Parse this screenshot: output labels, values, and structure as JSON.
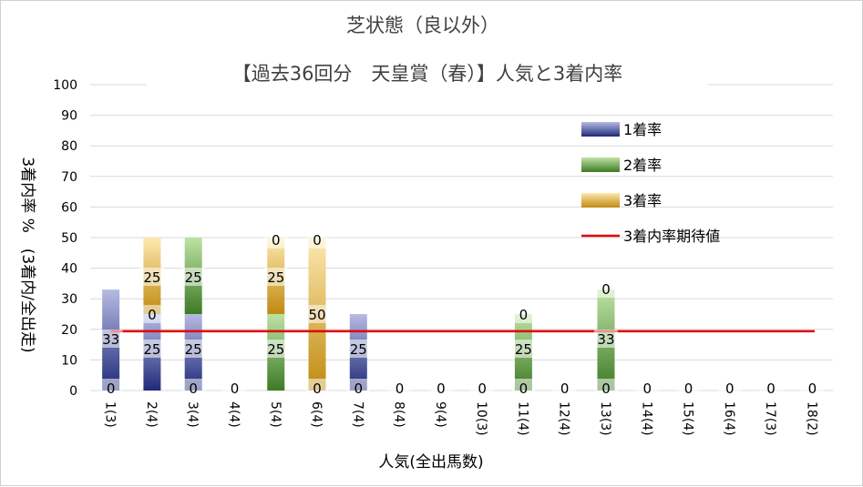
{
  "chart_data": {
    "type": "bar",
    "title": "芝状態（良以外）",
    "subtitle": "【過去36回分　天皇賞（春）】人気と3着内率",
    "xlabel": "人気(全出馬数)",
    "ylabel": "3着内率 %　(3着内/全出走)",
    "ylim": [
      0,
      100
    ],
    "yticks": [
      "0",
      "10",
      "20",
      "30",
      "40",
      "50",
      "60",
      "70",
      "80",
      "90",
      "100"
    ],
    "categories": [
      "1(3)",
      "2(4)",
      "3(4)",
      "4(4)",
      "5(4)",
      "6(4)",
      "7(4)",
      "8(4)",
      "9(4)",
      "10(3)",
      "11(4)",
      "12(4)",
      "13(3)",
      "14(4)",
      "15(4)",
      "16(4)",
      "17(3)",
      "18(2)"
    ],
    "series": [
      {
        "name": "1着率",
        "values": [
          33,
          25,
          25,
          0,
          0,
          0,
          25,
          0,
          0,
          0,
          0,
          0,
          0,
          0,
          0,
          0,
          0,
          0
        ],
        "color": "#3b4696"
      },
      {
        "name": "2着率",
        "values": [
          0,
          0,
          25,
          0,
          25,
          0,
          0,
          0,
          0,
          0,
          25,
          0,
          33,
          0,
          0,
          0,
          0,
          0
        ],
        "color": "#5a8a3a"
      },
      {
        "name": "3着率",
        "values": [
          0,
          25,
          0,
          0,
          25,
          50,
          0,
          0,
          0,
          0,
          0,
          0,
          0,
          0,
          0,
          0,
          0,
          0
        ],
        "color": "#c89b1e"
      }
    ],
    "data_labels": [
      {
        "category": "1(3)",
        "values": [
          "0",
          "33"
        ]
      },
      {
        "category": "2(4)",
        "values": [
          "25",
          "0",
          "25"
        ]
      },
      {
        "category": "3(4)",
        "values": [
          "0",
          "25",
          "25"
        ]
      },
      {
        "category": "4(4)",
        "values": [
          "0"
        ]
      },
      {
        "category": "5(4)",
        "values": [
          "25",
          "25",
          "0"
        ]
      },
      {
        "category": "6(4)",
        "values": [
          "0",
          "50",
          "0"
        ]
      },
      {
        "category": "7(4)",
        "values": [
          "0",
          "25"
        ]
      },
      {
        "category": "8(4)",
        "values": [
          "0"
        ]
      },
      {
        "category": "9(4)",
        "values": [
          "0"
        ]
      },
      {
        "category": "10(3)",
        "values": [
          "0"
        ]
      },
      {
        "category": "11(4)",
        "values": [
          "0",
          "25",
          "0"
        ]
      },
      {
        "category": "12(4)",
        "values": [
          "0"
        ]
      },
      {
        "category": "13(3)",
        "values": [
          "0",
          "33",
          "0"
        ]
      },
      {
        "category": "14(4)",
        "values": [
          "0"
        ]
      },
      {
        "category": "15(4)",
        "values": [
          "0"
        ]
      },
      {
        "category": "16(4)",
        "values": [
          "0"
        ]
      },
      {
        "category": "17(3)",
        "values": [
          "0"
        ]
      },
      {
        "category": "18(2)",
        "values": [
          "0"
        ]
      }
    ],
    "expected_line": {
      "name": "3着内率期待値",
      "value": 19.4,
      "color": "#e00000"
    },
    "legend_position": "top-right",
    "grid": true
  }
}
